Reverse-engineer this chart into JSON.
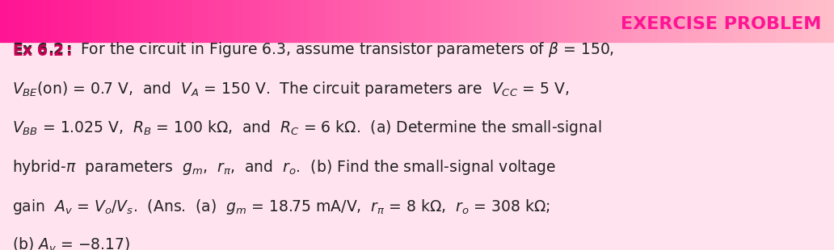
{
  "title": "EXERCISE PROBLEM",
  "title_color": "#FF1493",
  "background_color": "#FFE4EF",
  "header_gradient_start": "#FF69B4",
  "header_gradient_end": "#FFB6C1",
  "body_lines": [
    {
      "type": "mixed",
      "parts": [
        {
          "text": "Ex 6.2:",
          "bold": true,
          "color": "#CC0066",
          "size": 15
        },
        {
          "text": " For the circuit in Figure 6.3, assume transistor parameters of ",
          "bold": false,
          "color": "#222222",
          "size": 15
        },
        {
          "text": "β",
          "bold": false,
          "color": "#222222",
          "size": 15,
          "italic": true
        },
        {
          "text": " = 150,",
          "bold": false,
          "color": "#222222",
          "size": 15
        }
      ]
    },
    {
      "type": "mixed",
      "parts": [
        {
          "text": "V",
          "italic": true,
          "sub": "BE",
          "color": "#222222",
          "size": 15
        },
        {
          "text": "(on) = 0.7 V,  and  ",
          "bold": false,
          "color": "#222222",
          "size": 15
        },
        {
          "text": "V",
          "italic": true,
          "sub": "A",
          "color": "#222222",
          "size": 15
        },
        {
          "text": " = 150 V.  The  circuit  parameters  are  ",
          "bold": false,
          "color": "#222222",
          "size": 15
        },
        {
          "text": "V",
          "italic": true,
          "sub": "CC",
          "color": "#222222",
          "size": 15
        },
        {
          "text": " = 5 V,",
          "bold": false,
          "color": "#222222",
          "size": 15
        }
      ]
    },
    {
      "type": "mixed",
      "parts": [
        {
          "text": "V",
          "italic": true,
          "sub": "BB",
          "color": "#222222",
          "size": 15
        },
        {
          "text": " = 1.025 V,  ",
          "bold": false,
          "color": "#222222",
          "size": 15
        },
        {
          "text": "R",
          "italic": true,
          "sub": "B",
          "color": "#222222",
          "size": 15
        },
        {
          "text": " = 100 kΩ,  and  ",
          "bold": false,
          "color": "#222222",
          "size": 15
        },
        {
          "text": "R",
          "italic": true,
          "sub": "C",
          "color": "#222222",
          "size": 15
        },
        {
          "text": " = 6 kΩ.  (a) Determine  the  small-signal",
          "bold": false,
          "color": "#222222",
          "size": 15
        }
      ]
    },
    {
      "type": "mixed",
      "parts": [
        {
          "text": "hybrid-π  parameters  ",
          "bold": false,
          "color": "#222222",
          "size": 15
        },
        {
          "text": "g",
          "italic": true,
          "sub": "m",
          "color": "#222222",
          "size": 15
        },
        {
          "text": ",  ",
          "bold": false,
          "color": "#222222",
          "size": 15
        },
        {
          "text": "r",
          "italic": true,
          "sub": "π",
          "color": "#222222",
          "size": 15
        },
        {
          "text": ",  and  ",
          "bold": false,
          "color": "#222222",
          "size": 15
        },
        {
          "text": "r",
          "italic": true,
          "sub": "o",
          "color": "#222222",
          "size": 15
        },
        {
          "text": ".  (b) Find  the  small-signal  voltage",
          "bold": false,
          "color": "#222222",
          "size": 15
        }
      ]
    },
    {
      "type": "mixed",
      "parts": [
        {
          "text": "gain  ",
          "bold": false,
          "color": "#222222",
          "size": 15
        },
        {
          "text": "A",
          "italic": true,
          "sub": "v",
          "color": "#222222",
          "size": 15
        },
        {
          "text": " = ",
          "bold": false,
          "color": "#222222",
          "size": 15
        },
        {
          "text": "V",
          "italic": true,
          "sub": "o",
          "color": "#222222",
          "size": 15
        },
        {
          "text": "/",
          "bold": false,
          "color": "#222222",
          "size": 15
        },
        {
          "text": "V",
          "italic": true,
          "sub": "s",
          "color": "#222222",
          "size": 15
        },
        {
          "text": ".  (Ans.  (a)  ",
          "bold": false,
          "color": "#222222",
          "size": 15
        },
        {
          "text": "g",
          "italic": true,
          "sub": "m",
          "color": "#222222",
          "size": 15
        },
        {
          "text": " = 18.75 mA/V,  ",
          "bold": false,
          "color": "#222222",
          "size": 15
        },
        {
          "text": "r",
          "italic": true,
          "sub": "π",
          "color": "#222222",
          "size": 15
        },
        {
          "text": " = 8 kΩ,  ",
          "bold": false,
          "color": "#222222",
          "size": 15
        },
        {
          "text": "r",
          "italic": true,
          "sub": "o",
          "color": "#222222",
          "size": 15
        },
        {
          "text": " = 308 kΩ;",
          "bold": false,
          "color": "#222222",
          "size": 15
        }
      ]
    },
    {
      "type": "mixed",
      "parts": [
        {
          "text": "(b) ",
          "bold": false,
          "color": "#222222",
          "size": 15
        },
        {
          "text": "A",
          "italic": true,
          "sub": "v",
          "color": "#222222",
          "size": 15
        },
        {
          "text": " = −8.17)",
          "bold": false,
          "color": "#222222",
          "size": 15
        }
      ]
    }
  ],
  "fig_width": 10.32,
  "fig_height": 3.1,
  "dpi": 100
}
